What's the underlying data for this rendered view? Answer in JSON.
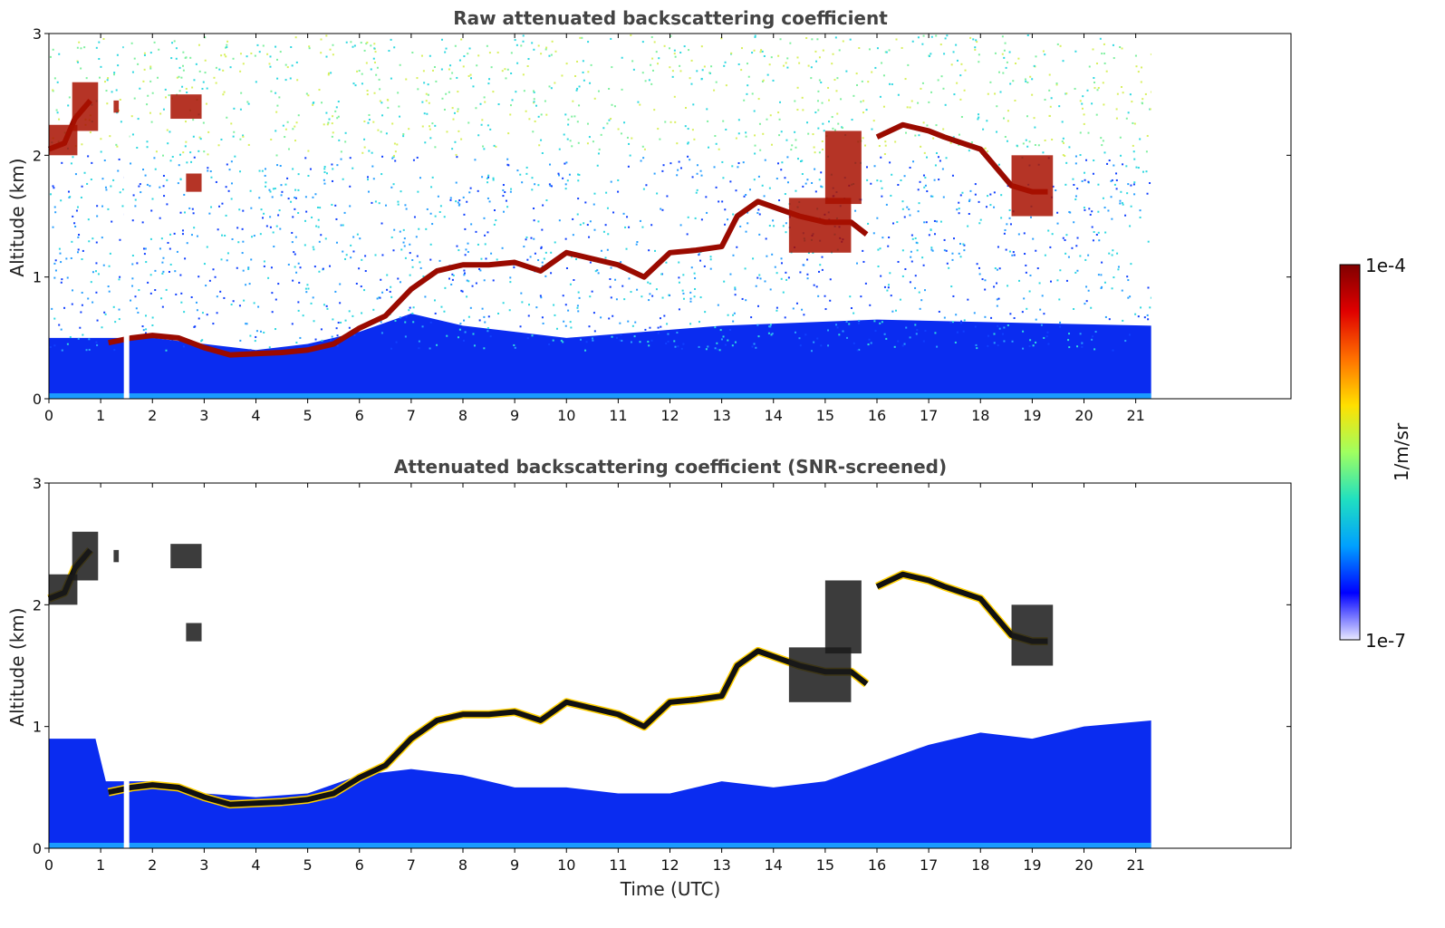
{
  "chart_data": [
    {
      "type": "heatmap",
      "title": "Raw attenuated backscattering coefficient",
      "xlabel": "",
      "ylabel": "Altitude (km)",
      "xlim": [
        0,
        24
      ],
      "ylim": [
        0,
        3
      ],
      "x_ticks": [
        "0",
        "1",
        "2",
        "3",
        "4",
        "5",
        "6",
        "7",
        "8",
        "9",
        "10",
        "11",
        "12",
        "13",
        "14",
        "15",
        "16",
        "17",
        "18",
        "19",
        "20",
        "21"
      ],
      "y_ticks": [
        "0",
        "1",
        "2",
        "3"
      ],
      "data_end_time": 21.3,
      "missing_data_time": 1.5,
      "noise_region": "noisy background above about 0.5 km, strongest (green-yellow) above 2 km",
      "aerosol_layer_top_km": [
        {
          "x": 0.0,
          "y": 0.5
        },
        {
          "x": 1.0,
          "y": 0.5
        },
        {
          "x": 2.0,
          "y": 0.5
        },
        {
          "x": 3.0,
          "y": 0.45
        },
        {
          "x": 4.0,
          "y": 0.4
        },
        {
          "x": 5.0,
          "y": 0.45
        },
        {
          "x": 6.0,
          "y": 0.55
        },
        {
          "x": 7.0,
          "y": 0.7
        },
        {
          "x": 8.0,
          "y": 0.6
        },
        {
          "x": 10.0,
          "y": 0.5
        },
        {
          "x": 13.0,
          "y": 0.6
        },
        {
          "x": 16.0,
          "y": 0.65
        },
        {
          "x": 21.3,
          "y": 0.6
        }
      ],
      "cloud_layer_km": [
        {
          "x": 0.0,
          "y": 2.05
        },
        {
          "x": 0.3,
          "y": 2.1
        },
        {
          "x": 0.5,
          "y": 2.3
        },
        {
          "x": 0.8,
          "y": 2.45
        },
        {
          "x": 1.15,
          "y": 0.46
        },
        {
          "x": 1.6,
          "y": 0.5
        },
        {
          "x": 2.0,
          "y": 0.52
        },
        {
          "x": 2.5,
          "y": 0.5
        },
        {
          "x": 3.0,
          "y": 0.42
        },
        {
          "x": 3.5,
          "y": 0.36
        },
        {
          "x": 4.0,
          "y": 0.37
        },
        {
          "x": 4.5,
          "y": 0.38
        },
        {
          "x": 5.0,
          "y": 0.4
        },
        {
          "x": 5.5,
          "y": 0.45
        },
        {
          "x": 6.0,
          "y": 0.58
        },
        {
          "x": 6.5,
          "y": 0.68
        },
        {
          "x": 7.0,
          "y": 0.9
        },
        {
          "x": 7.5,
          "y": 1.05
        },
        {
          "x": 8.0,
          "y": 1.1
        },
        {
          "x": 8.5,
          "y": 1.1
        },
        {
          "x": 9.0,
          "y": 1.12
        },
        {
          "x": 9.5,
          "y": 1.05
        },
        {
          "x": 10.0,
          "y": 1.2
        },
        {
          "x": 10.5,
          "y": 1.15
        },
        {
          "x": 11.0,
          "y": 1.1
        },
        {
          "x": 11.5,
          "y": 1.0
        },
        {
          "x": 12.0,
          "y": 1.2
        },
        {
          "x": 12.5,
          "y": 1.22
        },
        {
          "x": 13.0,
          "y": 1.25
        },
        {
          "x": 13.3,
          "y": 1.5
        },
        {
          "x": 13.7,
          "y": 1.62
        },
        {
          "x": 14.5,
          "y": 1.5
        },
        {
          "x": 15.0,
          "y": 1.45
        },
        {
          "x": 15.5,
          "y": 1.45
        },
        {
          "x": 15.8,
          "y": 1.35
        },
        {
          "x": 16.0,
          "y": 2.15
        },
        {
          "x": 16.5,
          "y": 2.25
        },
        {
          "x": 17.0,
          "y": 2.2
        },
        {
          "x": 17.3,
          "y": 2.15
        },
        {
          "x": 18.0,
          "y": 2.05
        },
        {
          "x": 18.6,
          "y": 1.75
        },
        {
          "x": 19.0,
          "y": 1.7
        },
        {
          "x": 19.3,
          "y": 1.7
        }
      ],
      "cloud_patches_km": [
        {
          "x": [
            0.0,
            0.55
          ],
          "y": [
            2.0,
            2.25
          ]
        },
        {
          "x": [
            0.45,
            0.95
          ],
          "y": [
            2.2,
            2.6
          ]
        },
        {
          "x": [
            1.25,
            1.35
          ],
          "y": [
            2.35,
            2.45
          ]
        },
        {
          "x": [
            2.35,
            2.95
          ],
          "y": [
            2.3,
            2.5
          ]
        },
        {
          "x": [
            2.65,
            2.95
          ],
          "y": [
            1.7,
            1.85
          ]
        },
        {
          "x": [
            14.3,
            15.5
          ],
          "y": [
            1.2,
            1.65
          ]
        },
        {
          "x": [
            15.0,
            15.7
          ],
          "y": [
            1.6,
            2.2
          ]
        },
        {
          "x": [
            18.6,
            19.4
          ],
          "y": [
            1.5,
            2.0
          ]
        }
      ]
    },
    {
      "type": "heatmap",
      "title": "Attenuated backscattering coefficient (SNR-screened)",
      "xlabel": "Time (UTC)",
      "ylabel": "Altitude (km)",
      "xlim": [
        0,
        24
      ],
      "ylim": [
        0,
        3
      ],
      "x_ticks": [
        "0",
        "1",
        "2",
        "3",
        "4",
        "5",
        "6",
        "7",
        "8",
        "9",
        "10",
        "11",
        "12",
        "13",
        "14",
        "15",
        "16",
        "17",
        "18",
        "19",
        "20",
        "21"
      ],
      "y_ticks": [
        "0",
        "1",
        "2",
        "3"
      ],
      "data_end_time": 21.3,
      "missing_data_time": 1.5,
      "aerosol_layer_top_km": [
        {
          "x": 0.0,
          "y": 0.9
        },
        {
          "x": 0.9,
          "y": 0.9
        },
        {
          "x": 1.1,
          "y": 0.55
        },
        {
          "x": 2.0,
          "y": 0.55
        },
        {
          "x": 3.0,
          "y": 0.45
        },
        {
          "x": 4.0,
          "y": 0.42
        },
        {
          "x": 5.0,
          "y": 0.45
        },
        {
          "x": 6.0,
          "y": 0.6
        },
        {
          "x": 7.0,
          "y": 0.65
        },
        {
          "x": 8.0,
          "y": 0.6
        },
        {
          "x": 9.0,
          "y": 0.5
        },
        {
          "x": 10.0,
          "y": 0.5
        },
        {
          "x": 11.0,
          "y": 0.45
        },
        {
          "x": 12.0,
          "y": 0.45
        },
        {
          "x": 13.0,
          "y": 0.55
        },
        {
          "x": 14.0,
          "y": 0.5
        },
        {
          "x": 15.0,
          "y": 0.55
        },
        {
          "x": 16.0,
          "y": 0.7
        },
        {
          "x": 17.0,
          "y": 0.85
        },
        {
          "x": 18.0,
          "y": 0.95
        },
        {
          "x": 19.0,
          "y": 0.9
        },
        {
          "x": 20.0,
          "y": 1.0
        },
        {
          "x": 21.3,
          "y": 1.05
        }
      ],
      "cloud_layer_km": [
        {
          "x": 0.0,
          "y": 2.05
        },
        {
          "x": 0.3,
          "y": 2.1
        },
        {
          "x": 0.5,
          "y": 2.3
        },
        {
          "x": 0.8,
          "y": 2.45
        },
        {
          "x": 1.15,
          "y": 0.46
        },
        {
          "x": 1.6,
          "y": 0.5
        },
        {
          "x": 2.0,
          "y": 0.52
        },
        {
          "x": 2.5,
          "y": 0.5
        },
        {
          "x": 3.0,
          "y": 0.42
        },
        {
          "x": 3.5,
          "y": 0.36
        },
        {
          "x": 4.0,
          "y": 0.37
        },
        {
          "x": 4.5,
          "y": 0.38
        },
        {
          "x": 5.0,
          "y": 0.4
        },
        {
          "x": 5.5,
          "y": 0.45
        },
        {
          "x": 6.0,
          "y": 0.58
        },
        {
          "x": 6.5,
          "y": 0.68
        },
        {
          "x": 7.0,
          "y": 0.9
        },
        {
          "x": 7.5,
          "y": 1.05
        },
        {
          "x": 8.0,
          "y": 1.1
        },
        {
          "x": 8.5,
          "y": 1.1
        },
        {
          "x": 9.0,
          "y": 1.12
        },
        {
          "x": 9.5,
          "y": 1.05
        },
        {
          "x": 10.0,
          "y": 1.2
        },
        {
          "x": 10.5,
          "y": 1.15
        },
        {
          "x": 11.0,
          "y": 1.1
        },
        {
          "x": 11.5,
          "y": 1.0
        },
        {
          "x": 12.0,
          "y": 1.2
        },
        {
          "x": 12.5,
          "y": 1.22
        },
        {
          "x": 13.0,
          "y": 1.25
        },
        {
          "x": 13.3,
          "y": 1.5
        },
        {
          "x": 13.7,
          "y": 1.62
        },
        {
          "x": 14.5,
          "y": 1.5
        },
        {
          "x": 15.0,
          "y": 1.45
        },
        {
          "x": 15.5,
          "y": 1.45
        },
        {
          "x": 15.8,
          "y": 1.35
        },
        {
          "x": 16.0,
          "y": 2.15
        },
        {
          "x": 16.5,
          "y": 2.25
        },
        {
          "x": 17.0,
          "y": 2.2
        },
        {
          "x": 17.3,
          "y": 2.15
        },
        {
          "x": 18.0,
          "y": 2.05
        },
        {
          "x": 18.6,
          "y": 1.75
        },
        {
          "x": 19.0,
          "y": 1.7
        },
        {
          "x": 19.3,
          "y": 1.7
        }
      ],
      "cloud_patches_km": [
        {
          "x": [
            0.0,
            0.55
          ],
          "y": [
            2.0,
            2.25
          ]
        },
        {
          "x": [
            0.45,
            0.95
          ],
          "y": [
            2.2,
            2.6
          ]
        },
        {
          "x": [
            1.25,
            1.35
          ],
          "y": [
            2.35,
            2.45
          ]
        },
        {
          "x": [
            2.35,
            2.95
          ],
          "y": [
            2.3,
            2.5
          ]
        },
        {
          "x": [
            2.65,
            2.95
          ],
          "y": [
            1.7,
            1.85
          ]
        },
        {
          "x": [
            14.3,
            15.5
          ],
          "y": [
            1.2,
            1.65
          ]
        },
        {
          "x": [
            15.0,
            15.7
          ],
          "y": [
            1.6,
            2.2
          ]
        },
        {
          "x": [
            18.6,
            19.4
          ],
          "y": [
            1.5,
            2.0
          ]
        }
      ]
    }
  ],
  "colorbar": {
    "label": "1/m/sr",
    "max_label": "1e-4",
    "min_label": "1e-7",
    "scale": "log",
    "range": [
      1e-07,
      0.0001
    ],
    "colormap": "jet",
    "colors": [
      "#e8e8ff",
      "#0000ff",
      "#00a0ff",
      "#20e0c0",
      "#a0ff60",
      "#ffe000",
      "#ff7000",
      "#e00000",
      "#800000"
    ]
  }
}
